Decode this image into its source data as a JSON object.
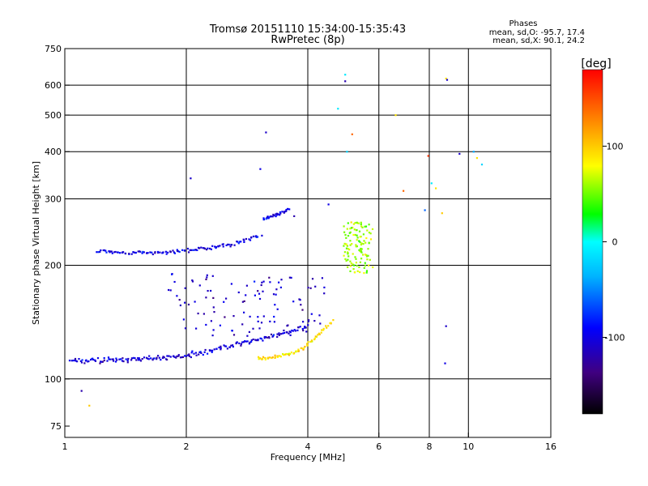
{
  "chart_data": {
    "type": "scatter",
    "title_line1": "Tromsø 20151110 15:34:00-15:35:43",
    "title_line2": "RwPretec (8p)",
    "xlabel": "Frequency [MHz]",
    "ylabel": "Stationary phase Virtual Height [km]",
    "x_scale": "log",
    "y_scale": "log",
    "xlim": [
      1,
      16
    ],
    "ylim": [
      70,
      750
    ],
    "x_ticks": [
      {
        "value": 1,
        "label": "1"
      },
      {
        "value": 2,
        "label": "2"
      },
      {
        "value": 4,
        "label": "4"
      },
      {
        "value": 6,
        "label": "6"
      },
      {
        "value": 8,
        "label": "8"
      },
      {
        "value": 10,
        "label": "10"
      },
      {
        "value": 16,
        "label": "16"
      }
    ],
    "x_grid": [
      2,
      4,
      6,
      8,
      10
    ],
    "y_ticks": [
      {
        "value": 75,
        "label": "75"
      },
      {
        "value": 100,
        "label": "100"
      },
      {
        "value": 200,
        "label": "200"
      },
      {
        "value": 300,
        "label": "300"
      },
      {
        "value": 400,
        "label": "400"
      },
      {
        "value": 500,
        "label": "500"
      },
      {
        "value": 600,
        "label": "600"
      },
      {
        "value": 750,
        "label": "750"
      }
    ],
    "y_grid": [
      100,
      200,
      300,
      400,
      500,
      600
    ],
    "grid": true,
    "stats": {
      "heading": "Phases",
      "line_o": "mean, sd,O: -95.7, 17.4",
      "line_x": "mean, sd,X:  90.1, 24.2"
    },
    "colorbar": {
      "unit_label": "[deg]",
      "range": [
        -180,
        180
      ],
      "ticks": [
        {
          "value": 100,
          "label": "100"
        },
        {
          "value": 0,
          "label": "0"
        },
        {
          "value": -100,
          "label": "-100"
        }
      ]
    },
    "traces": [
      {
        "name": "E layer trace (O mode)",
        "x_range": [
          1.03,
          4.0
        ],
        "heights": [
          112,
          112,
          113,
          114,
          118,
          124,
          130,
          138
        ],
        "phase": -105,
        "points": 190,
        "jitter": 0.018
      },
      {
        "name": "E layer trace (X mode)",
        "x_range": [
          3.0,
          4.6
        ],
        "heights": [
          113,
          114,
          116,
          120,
          130,
          142
        ],
        "phase": 90,
        "points": 70,
        "jitter": 0.012
      },
      {
        "name": "F layer trace lower branch",
        "x_range": [
          1.2,
          3.05
        ],
        "heights": [
          218,
          216,
          215,
          218,
          222,
          228,
          240
        ],
        "phase": -100,
        "points": 120,
        "jitter": 0.014
      },
      {
        "name": "F layer trace upper branch",
        "x_range": [
          3.1,
          3.6
        ],
        "heights": [
          265,
          270,
          275,
          282
        ],
        "phase": -100,
        "points": 35,
        "jitter": 0.012
      },
      {
        "name": "scattered echoes 130-190 km",
        "x_range": [
          1.8,
          4.4
        ],
        "heights": [
          130,
          190
        ],
        "phase": -110,
        "points": 110,
        "spread": true
      },
      {
        "name": "spread F cluster near 5.3 MHz",
        "x_range": [
          4.9,
          5.8
        ],
        "heights": [
          190,
          260
        ],
        "phase": 60,
        "points": 120,
        "spread": true
      }
    ],
    "isolated_points": [
      {
        "x": 1.1,
        "y": 93,
        "phase": -120
      },
      {
        "x": 1.15,
        "y": 85,
        "phase": 100
      },
      {
        "x": 2.05,
        "y": 340,
        "phase": -110
      },
      {
        "x": 3.15,
        "y": 450,
        "phase": -110
      },
      {
        "x": 3.05,
        "y": 360,
        "phase": -100
      },
      {
        "x": 4.95,
        "y": 640,
        "phase": -10
      },
      {
        "x": 4.95,
        "y": 615,
        "phase": -120
      },
      {
        "x": 4.75,
        "y": 520,
        "phase": -10
      },
      {
        "x": 5.15,
        "y": 445,
        "phase": 140
      },
      {
        "x": 5.0,
        "y": 400,
        "phase": -20
      },
      {
        "x": 6.6,
        "y": 500,
        "phase": 90
      },
      {
        "x": 6.9,
        "y": 315,
        "phase": 140
      },
      {
        "x": 7.95,
        "y": 390,
        "phase": 160
      },
      {
        "x": 8.8,
        "y": 625,
        "phase": 90
      },
      {
        "x": 8.85,
        "y": 620,
        "phase": -110
      },
      {
        "x": 9.5,
        "y": 395,
        "phase": -110
      },
      {
        "x": 10.5,
        "y": 385,
        "phase": 90
      },
      {
        "x": 10.8,
        "y": 370,
        "phase": -20
      },
      {
        "x": 10.3,
        "y": 400,
        "phase": -40
      },
      {
        "x": 8.1,
        "y": 330,
        "phase": -10
      },
      {
        "x": 8.3,
        "y": 320,
        "phase": 90
      },
      {
        "x": 7.8,
        "y": 280,
        "phase": -60
      },
      {
        "x": 8.6,
        "y": 275,
        "phase": 100
      },
      {
        "x": 8.8,
        "y": 138,
        "phase": -110
      },
      {
        "x": 8.75,
        "y": 110,
        "phase": -100
      },
      {
        "x": 4.5,
        "y": 290,
        "phase": -100
      },
      {
        "x": 3.7,
        "y": 270,
        "phase": -120
      }
    ]
  }
}
